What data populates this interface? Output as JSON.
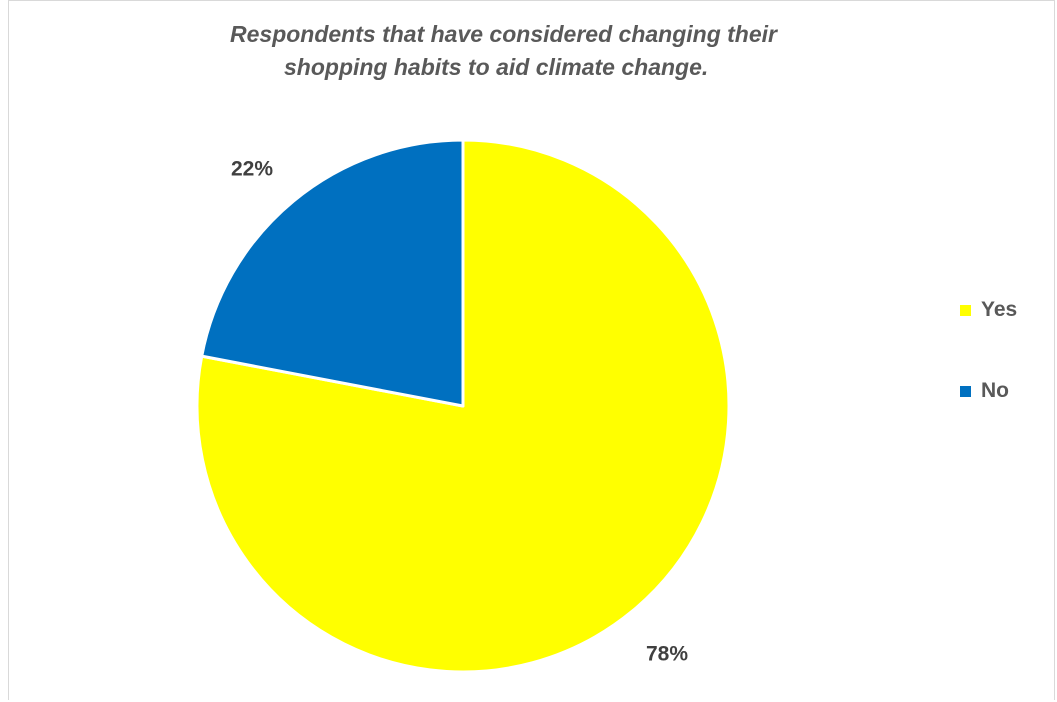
{
  "chart_data": {
    "type": "pie",
    "title": "Respondents that have considered changing their shopping habits to aid climate change.",
    "title_lines": [
      "Respondents that have considered changing their",
      "shopping habits to aid climate change."
    ],
    "categories": [
      "Yes",
      "No"
    ],
    "values": [
      78,
      22
    ],
    "data_labels": [
      "78%",
      "22%"
    ],
    "colors": [
      "#FFFF00",
      "#0070C0"
    ],
    "legend_position": "right"
  }
}
